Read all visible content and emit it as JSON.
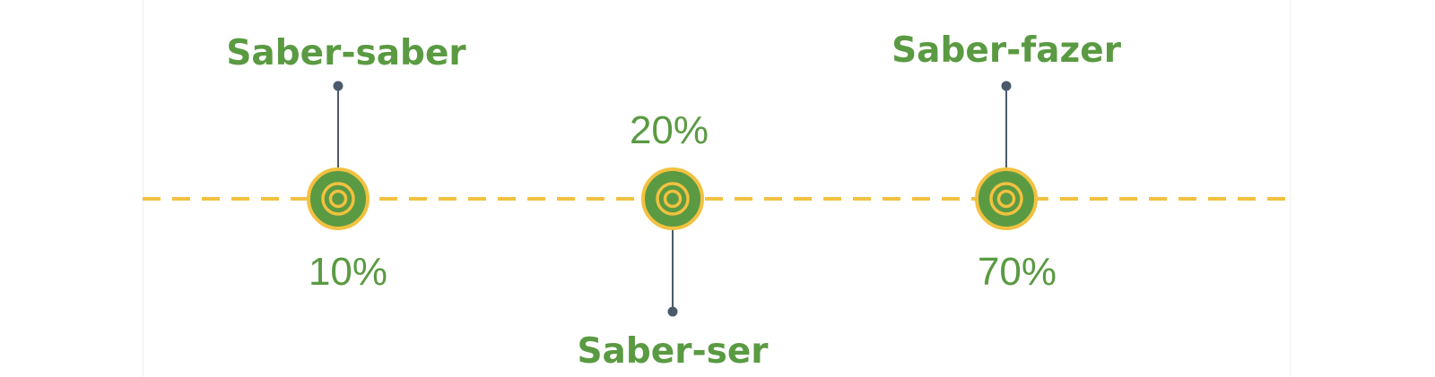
{
  "colors": {
    "accent_green": "#5a9a42",
    "accent_yellow": "#f2c140",
    "connector": "#4a5a6a"
  },
  "milestones": [
    {
      "label": "Saber-saber",
      "percent": "10%",
      "label_position": "top",
      "icon": "target-icon"
    },
    {
      "label": "Saber-ser",
      "percent": "20%",
      "label_position": "bottom",
      "icon": "target-icon"
    },
    {
      "label": "Saber-fazer",
      "percent": "70%",
      "label_position": "top",
      "icon": "target-icon"
    }
  ]
}
